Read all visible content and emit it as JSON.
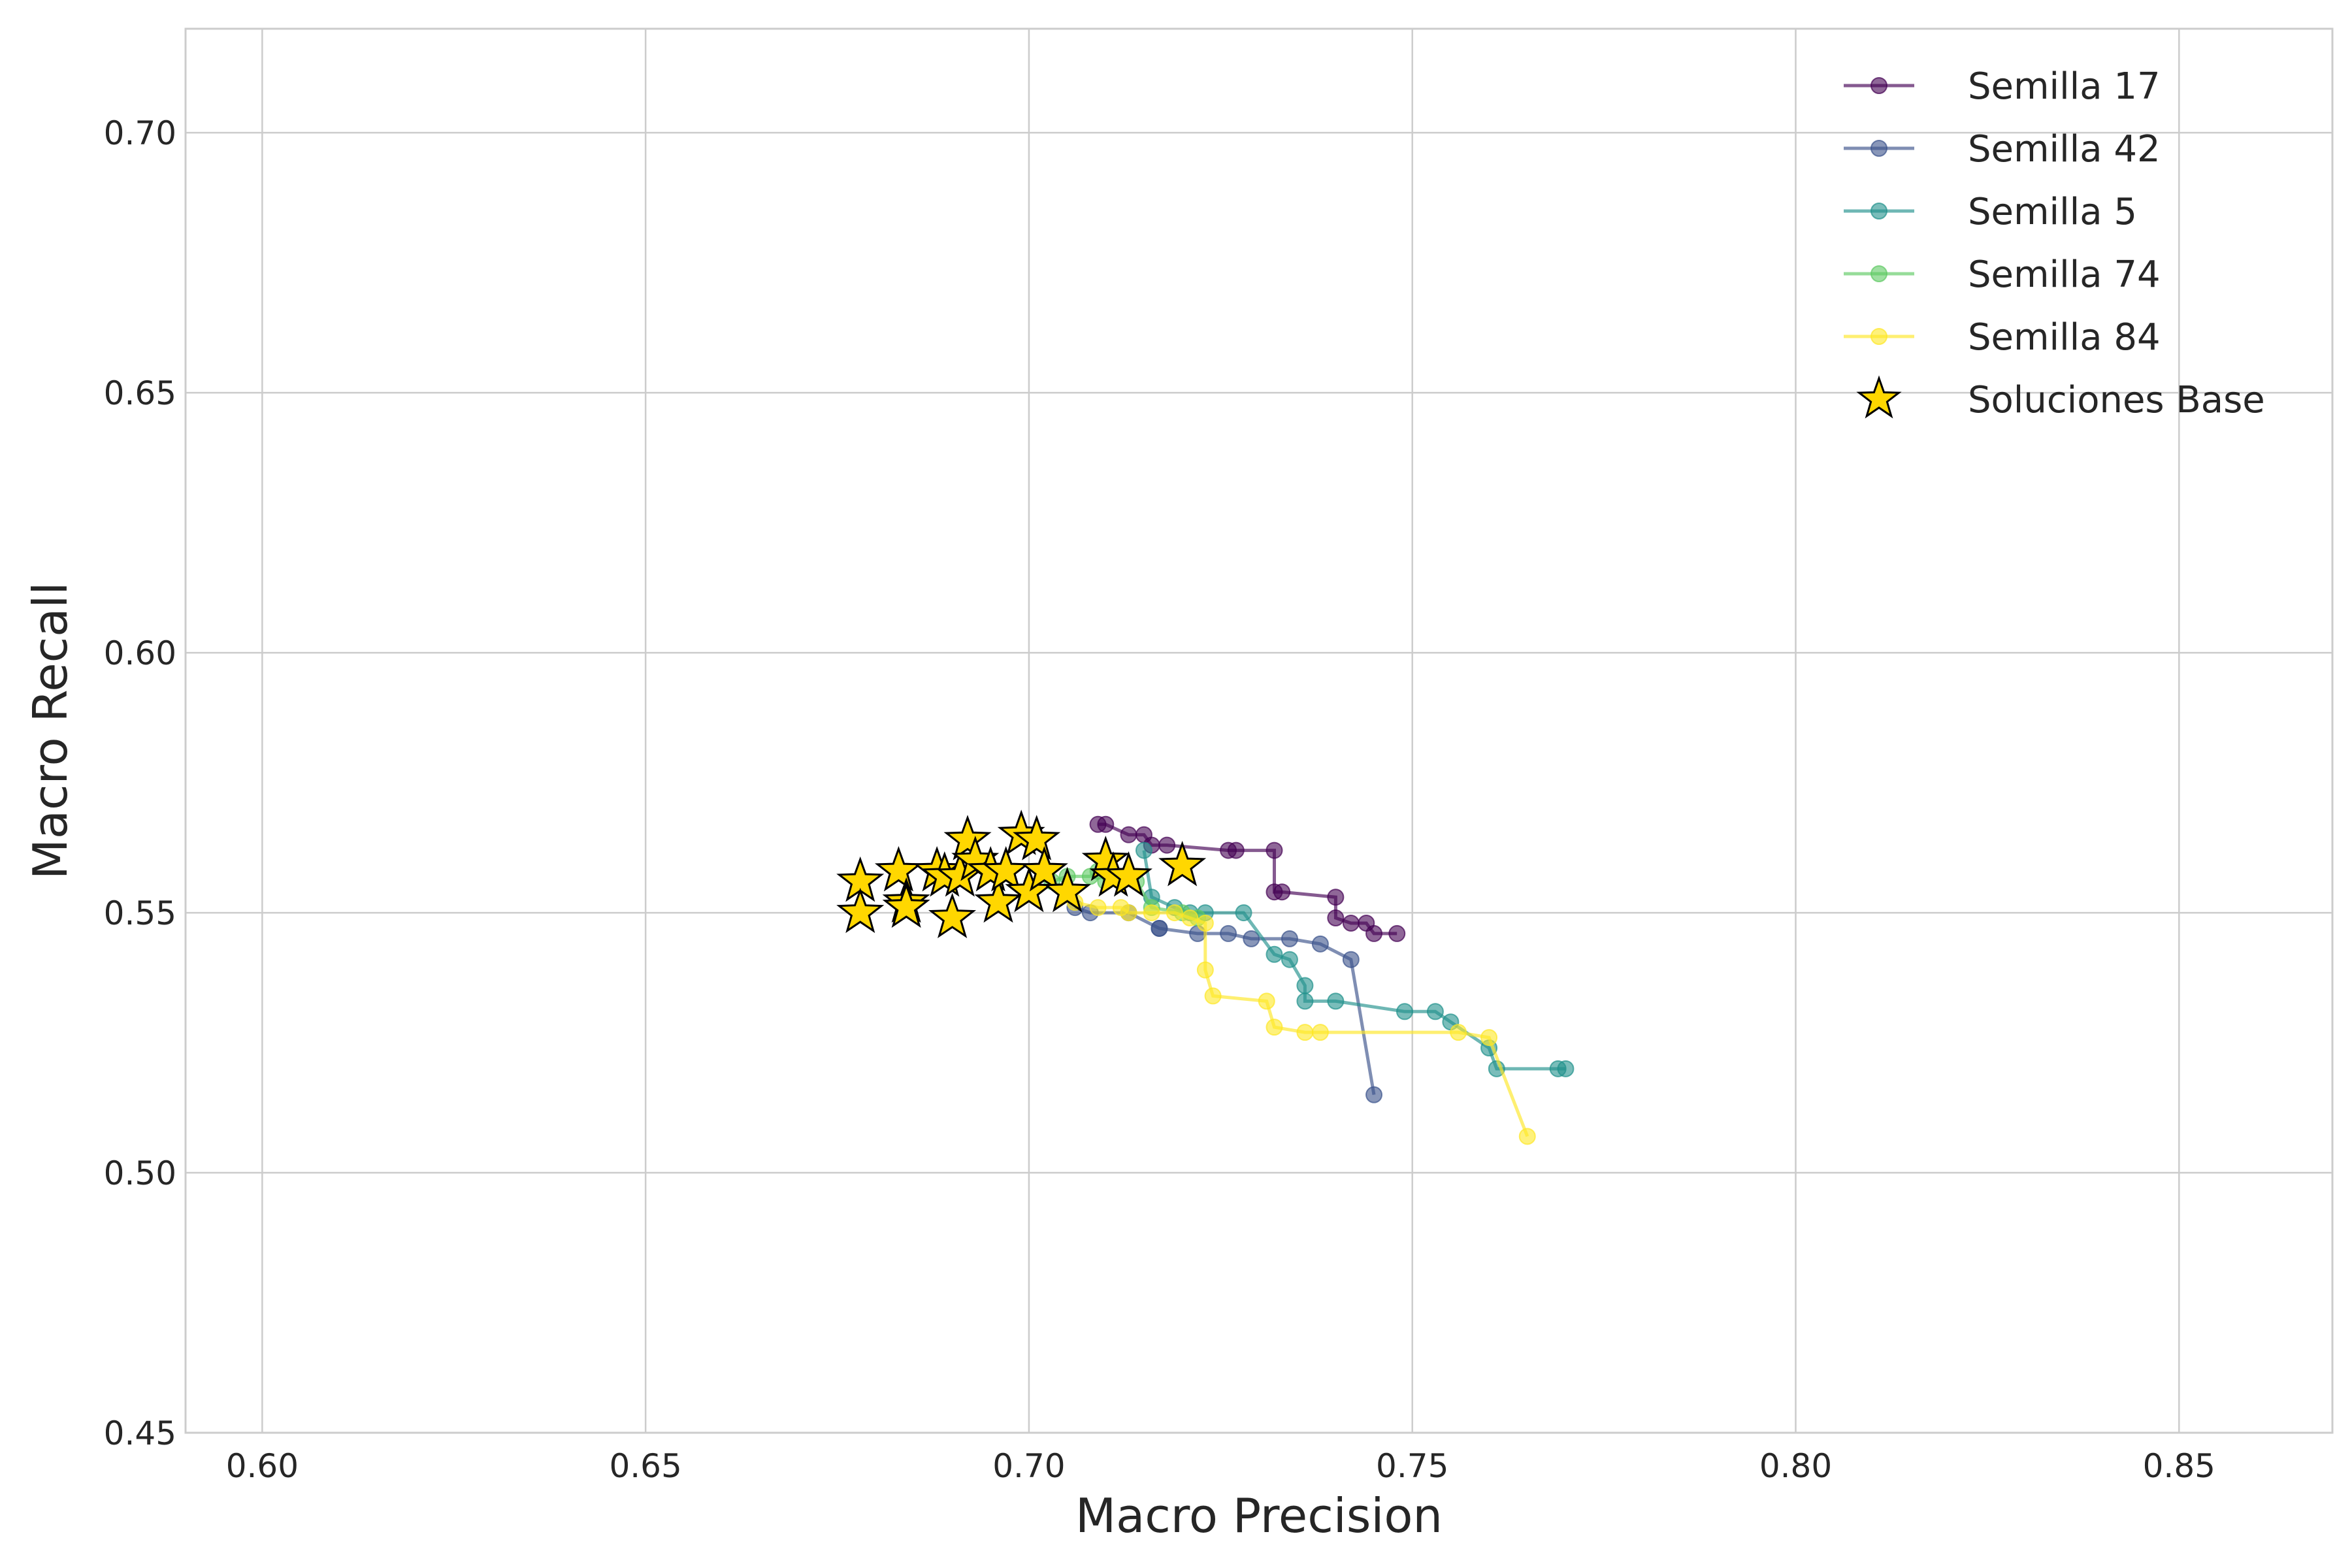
{
  "chart_data": {
    "type": "scatter",
    "title": "",
    "xlabel": "Macro Precision",
    "ylabel": "Macro Recall",
    "xlim": [
      0.59,
      0.87
    ],
    "ylim": [
      0.45,
      0.72
    ],
    "xticks": [
      "0.60",
      "0.65",
      "0.70",
      "0.75",
      "0.80",
      "0.85"
    ],
    "yticks": [
      "0.45",
      "0.50",
      "0.55",
      "0.60",
      "0.65",
      "0.70"
    ],
    "grid": true,
    "legend_position": "top-right",
    "series": [
      {
        "name": "Semilla 17",
        "color": "#440154",
        "style": "line-marker",
        "points": [
          [
            0.709,
            0.567
          ],
          [
            0.71,
            0.567
          ],
          [
            0.713,
            0.565
          ],
          [
            0.715,
            0.565
          ],
          [
            0.716,
            0.563
          ],
          [
            0.718,
            0.563
          ],
          [
            0.726,
            0.562
          ],
          [
            0.727,
            0.562
          ],
          [
            0.732,
            0.562
          ],
          [
            0.732,
            0.554
          ],
          [
            0.733,
            0.554
          ],
          [
            0.74,
            0.553
          ],
          [
            0.74,
            0.549
          ],
          [
            0.742,
            0.548
          ],
          [
            0.744,
            0.548
          ],
          [
            0.745,
            0.546
          ],
          [
            0.748,
            0.546
          ]
        ]
      },
      {
        "name": "Semilla 42",
        "color": "#3b528b",
        "style": "line-marker",
        "points": [
          [
            0.706,
            0.551
          ],
          [
            0.708,
            0.55
          ],
          [
            0.713,
            0.55
          ],
          [
            0.717,
            0.547
          ],
          [
            0.717,
            0.547
          ],
          [
            0.722,
            0.546
          ],
          [
            0.726,
            0.546
          ],
          [
            0.729,
            0.545
          ],
          [
            0.734,
            0.545
          ],
          [
            0.738,
            0.544
          ],
          [
            0.742,
            0.541
          ],
          [
            0.745,
            0.515
          ]
        ]
      },
      {
        "name": "Semilla 5",
        "color": "#21918c",
        "style": "line-marker",
        "points": [
          [
            0.715,
            0.562
          ],
          [
            0.716,
            0.553
          ],
          [
            0.719,
            0.551
          ],
          [
            0.721,
            0.55
          ],
          [
            0.723,
            0.55
          ],
          [
            0.728,
            0.55
          ],
          [
            0.732,
            0.542
          ],
          [
            0.734,
            0.541
          ],
          [
            0.736,
            0.536
          ],
          [
            0.736,
            0.533
          ],
          [
            0.74,
            0.533
          ],
          [
            0.749,
            0.531
          ],
          [
            0.753,
            0.531
          ],
          [
            0.755,
            0.529
          ],
          [
            0.76,
            0.524
          ],
          [
            0.761,
            0.52
          ],
          [
            0.769,
            0.52
          ],
          [
            0.77,
            0.52
          ]
        ]
      },
      {
        "name": "Semilla 74",
        "color": "#5ec962",
        "style": "line-marker",
        "points": [
          [
            0.703,
            0.556
          ],
          [
            0.705,
            0.557
          ],
          [
            0.708,
            0.557
          ],
          [
            0.709,
            0.558
          ],
          [
            0.71,
            0.556
          ],
          [
            0.712,
            0.556
          ],
          [
            0.714,
            0.556
          ],
          [
            0.716,
            0.551
          ],
          [
            0.72,
            0.55
          ],
          [
            0.722,
            0.549
          ]
        ]
      },
      {
        "name": "Semilla 84",
        "color": "#fde725",
        "style": "line-marker",
        "points": [
          [
            0.706,
            0.552
          ],
          [
            0.709,
            0.551
          ],
          [
            0.712,
            0.551
          ],
          [
            0.713,
            0.55
          ],
          [
            0.716,
            0.55
          ],
          [
            0.719,
            0.55
          ],
          [
            0.721,
            0.549
          ],
          [
            0.723,
            0.548
          ],
          [
            0.723,
            0.539
          ],
          [
            0.724,
            0.534
          ],
          [
            0.731,
            0.533
          ],
          [
            0.732,
            0.528
          ],
          [
            0.736,
            0.527
          ],
          [
            0.738,
            0.527
          ],
          [
            0.756,
            0.527
          ],
          [
            0.76,
            0.526
          ],
          [
            0.765,
            0.507
          ]
        ]
      },
      {
        "name": "Soluciones Base",
        "color": "#ffd700",
        "style": "star",
        "points": [
          [
            0.678,
            0.556
          ],
          [
            0.678,
            0.55
          ],
          [
            0.683,
            0.558
          ],
          [
            0.684,
            0.552
          ],
          [
            0.684,
            0.551
          ],
          [
            0.688,
            0.558
          ],
          [
            0.689,
            0.557
          ],
          [
            0.69,
            0.549
          ],
          [
            0.691,
            0.557
          ],
          [
            0.692,
            0.564
          ],
          [
            0.693,
            0.56
          ],
          [
            0.695,
            0.558
          ],
          [
            0.696,
            0.552
          ],
          [
            0.697,
            0.558
          ],
          [
            0.699,
            0.565
          ],
          [
            0.7,
            0.554
          ],
          [
            0.701,
            0.564
          ],
          [
            0.702,
            0.558
          ],
          [
            0.705,
            0.554
          ],
          [
            0.71,
            0.56
          ],
          [
            0.711,
            0.557
          ],
          [
            0.713,
            0.557
          ],
          [
            0.72,
            0.559
          ]
        ]
      }
    ]
  }
}
